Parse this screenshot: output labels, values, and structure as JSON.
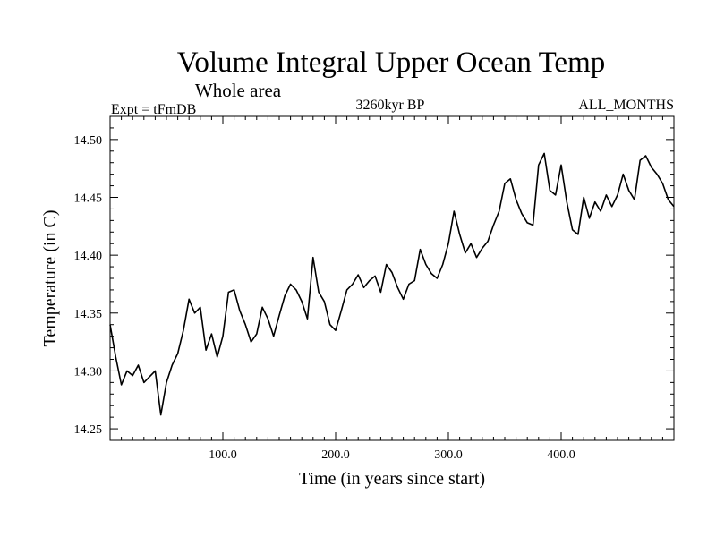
{
  "chart_data": {
    "type": "line",
    "title": "Volume Integral Upper Ocean Temp",
    "subtitle": "Whole area",
    "experiment": "Expt = tFmDB",
    "period": "3260kyr BP",
    "season": "ALL_MONTHS",
    "xlabel": "Time (in years since start)",
    "ylabel": "Temperature (in C)",
    "xlim": [
      0,
      500
    ],
    "ylim": [
      14.24,
      14.52
    ],
    "x_ticks": [
      100,
      200,
      300,
      400
    ],
    "x_tick_labels": [
      "100.0",
      "200.0",
      "300.0",
      "400.0"
    ],
    "y_ticks": [
      14.25,
      14.3,
      14.35,
      14.4,
      14.45,
      14.5
    ],
    "y_tick_labels": [
      "14.25",
      "14.30",
      "14.35",
      "14.40",
      "14.45",
      "14.50"
    ],
    "series": [
      {
        "name": "Temperature",
        "color": "#000000",
        "x": [
          0,
          5,
          10,
          15,
          20,
          25,
          30,
          35,
          40,
          45,
          50,
          55,
          60,
          65,
          70,
          75,
          80,
          85,
          90,
          95,
          100,
          105,
          110,
          115,
          120,
          125,
          130,
          135,
          140,
          145,
          150,
          155,
          160,
          165,
          170,
          175,
          180,
          185,
          190,
          195,
          200,
          205,
          210,
          215,
          220,
          225,
          230,
          235,
          240,
          245,
          250,
          255,
          260,
          265,
          270,
          275,
          280,
          285,
          290,
          295,
          300,
          305,
          310,
          315,
          320,
          325,
          330,
          335,
          340,
          345,
          350,
          355,
          360,
          365,
          370,
          375,
          380,
          385,
          390,
          395,
          400,
          405,
          410,
          415,
          420,
          425,
          430,
          435,
          440,
          445,
          450,
          455,
          460,
          465,
          470,
          475,
          480,
          485,
          490,
          495,
          500
        ],
        "values": [
          14.34,
          14.312,
          14.288,
          14.3,
          14.296,
          14.305,
          14.29,
          14.295,
          14.3,
          14.262,
          14.29,
          14.305,
          14.315,
          14.335,
          14.362,
          14.35,
          14.355,
          14.318,
          14.332,
          14.312,
          14.33,
          14.368,
          14.37,
          14.352,
          14.34,
          14.325,
          14.332,
          14.355,
          14.345,
          14.33,
          14.348,
          14.365,
          14.375,
          14.37,
          14.36,
          14.345,
          14.398,
          14.368,
          14.36,
          14.34,
          14.335,
          14.352,
          14.37,
          14.375,
          14.383,
          14.372,
          14.378,
          14.382,
          14.368,
          14.392,
          14.385,
          14.372,
          14.362,
          14.375,
          14.378,
          14.405,
          14.392,
          14.384,
          14.38,
          14.392,
          14.41,
          14.438,
          14.418,
          14.402,
          14.41,
          14.398,
          14.406,
          14.412,
          14.426,
          14.438,
          14.462,
          14.466,
          14.448,
          14.436,
          14.428,
          14.426,
          14.478,
          14.488,
          14.456,
          14.452,
          14.478,
          14.446,
          14.422,
          14.418,
          14.45,
          14.432,
          14.446,
          14.438,
          14.452,
          14.442,
          14.452,
          14.47,
          14.456,
          14.448,
          14.482,
          14.486,
          14.476,
          14.47,
          14.462,
          14.448,
          14.442
        ]
      }
    ]
  }
}
